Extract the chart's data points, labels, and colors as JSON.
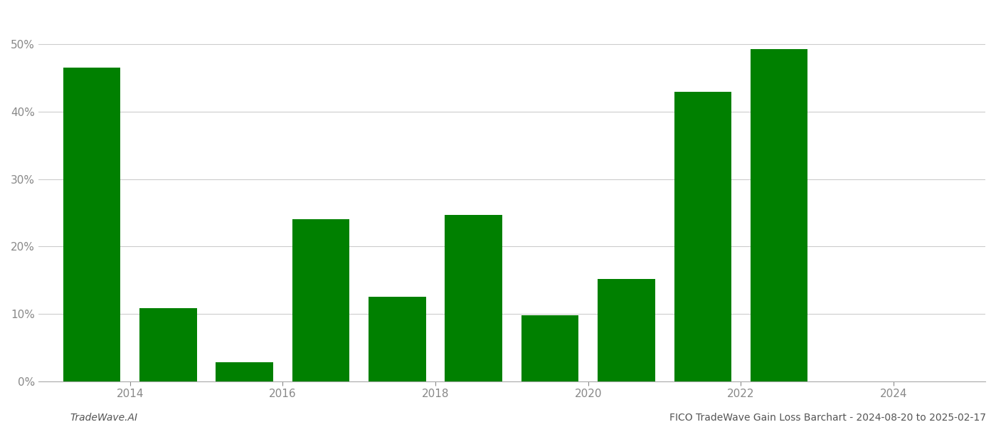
{
  "bar_positions": [
    2013.5,
    2014.5,
    2015.5,
    2016.5,
    2017.5,
    2018.5,
    2019.5,
    2020.5,
    2021.5,
    2022.5
  ],
  "values": [
    0.466,
    0.108,
    0.028,
    0.24,
    0.125,
    0.247,
    0.098,
    0.152,
    0.43,
    0.493
  ],
  "bar_color": "#008000",
  "background_color": "#ffffff",
  "grid_color": "#cccccc",
  "ylim": [
    0,
    0.55
  ],
  "yticks": [
    0.0,
    0.1,
    0.2,
    0.3,
    0.4,
    0.5
  ],
  "xticks": [
    2014,
    2016,
    2018,
    2020,
    2022,
    2024
  ],
  "xlim": [
    2012.8,
    2025.2
  ],
  "tick_fontsize": 11,
  "tick_color": "#888888",
  "axis_color": "#aaaaaa",
  "footer_left": "TradeWave.AI",
  "footer_right": "FICO TradeWave Gain Loss Barchart - 2024-08-20 to 2025-02-17",
  "footer_fontsize": 10,
  "bar_width": 0.75
}
